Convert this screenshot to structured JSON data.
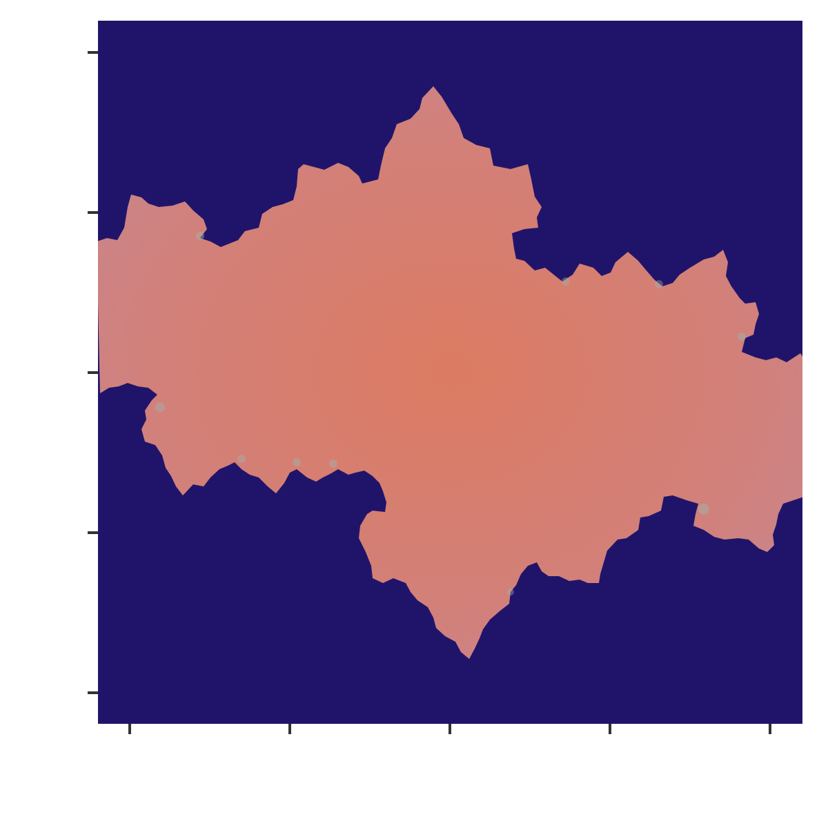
{
  "chart_data": {
    "type": "heatmap",
    "title": "",
    "xlabel": "",
    "ylabel": "",
    "colors": {
      "background": "#20146a",
      "fill_main": "#dc7b62",
      "fill_mid": "#d2807a",
      "fill_edge": "#c48894",
      "glow": "#9fb3ad"
    },
    "x_ticks": [
      "",
      "",
      "",
      "",
      ""
    ],
    "y_ticks": [
      "",
      "",
      "",
      "",
      ""
    ],
    "grid": false,
    "legend": "none"
  }
}
